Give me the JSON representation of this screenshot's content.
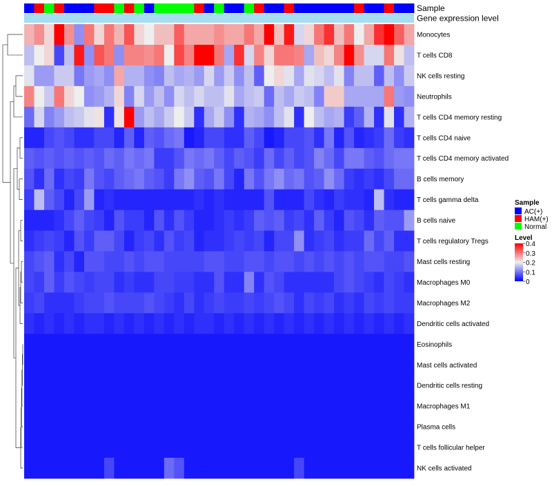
{
  "chart_data": {
    "type": "heatmap",
    "title": "",
    "annotation_tracks": [
      "Sample",
      "Gene expression level"
    ],
    "rows": [
      "Monocytes",
      "T cells CD8",
      "NK cells resting",
      "Neutrophils",
      "T cells CD4 memory resting",
      "T cells CD4 naive",
      "T cells CD4 memory activated",
      "B cells memory",
      "T cells gamma delta",
      "B cells naive",
      "T cells regulatory  Tregs",
      "Mast cells resting",
      "Macrophages M0",
      "Macrophages M2",
      "Dendritic cells activated",
      "Eosinophils",
      "Mast cells activated",
      "Dendritic cells resting",
      "Macrophages M1",
      "Plasma cells",
      "T cells follicular helper",
      "NK cells activated"
    ],
    "sample_groups": [
      "AC(+)",
      "HAM(+)",
      "Normal",
      "HAM(+)",
      "AC(+)",
      "AC(+)",
      "AC(+)",
      "HAM(+)",
      "HAM(+)",
      "Normal",
      "HAM(+)",
      "Normal",
      "AC(+)",
      "Normal",
      "Normal",
      "Normal",
      "Normal",
      "HAM(+)",
      "AC(+)",
      "Normal",
      "AC(+)",
      "AC(+)",
      "Normal",
      "HAM(+)",
      "AC(+)",
      "AC(+)",
      "HAM(+)",
      "AC(+)",
      "AC(+)",
      "AC(+)",
      "AC(+)",
      "AC(+)",
      "AC(+)",
      "HAM(+)",
      "AC(+)",
      "AC(+)",
      "HAM(+)",
      "AC(+)",
      "AC(+)"
    ],
    "values": [
      [
        0.25,
        0.28,
        0.22,
        0.4,
        0.28,
        0.12,
        0.3,
        0.22,
        0.3,
        0.25,
        0.33,
        0.22,
        0.2,
        0.24,
        0.24,
        0.32,
        0.26,
        0.26,
        0.26,
        0.28,
        0.26,
        0.26,
        0.3,
        0.26,
        0.4,
        0.24,
        0.38,
        0.18,
        0.22,
        0.3,
        0.36,
        0.24,
        0.3,
        0.2,
        0.26,
        0.36,
        0.4,
        0.32,
        0.26
      ],
      [
        0.16,
        0.2,
        0.22,
        0.06,
        0.16,
        0.38,
        0.12,
        0.33,
        0.3,
        0.12,
        0.29,
        0.29,
        0.28,
        0.3,
        0.2,
        0.34,
        0.29,
        0.4,
        0.4,
        0.3,
        0.14,
        0.36,
        0.18,
        0.29,
        0.22,
        0.3,
        0.3,
        0.29,
        0.14,
        0.24,
        0.22,
        0.29,
        0.4,
        0.28,
        0.18,
        0.18,
        0.3,
        0.21,
        0.16
      ],
      [
        0.19,
        0.13,
        0.13,
        0.17,
        0.17,
        0.1,
        0.13,
        0.14,
        0.12,
        0.26,
        0.15,
        0.15,
        0.12,
        0.11,
        0.16,
        0.14,
        0.15,
        0.13,
        0.18,
        0.13,
        0.17,
        0.12,
        0.16,
        0.08,
        0.2,
        0.22,
        0.19,
        0.14,
        0.19,
        0.18,
        0.16,
        0.19,
        0.11,
        0.16,
        0.16,
        0.08,
        0.16,
        0.12,
        0.17
      ],
      [
        0.29,
        0.2,
        0.17,
        0.3,
        0.22,
        0.2,
        0.12,
        0.13,
        0.15,
        0.22,
        0.11,
        0.18,
        0.13,
        0.16,
        0.12,
        0.18,
        0.16,
        0.18,
        0.16,
        0.16,
        0.19,
        0.14,
        0.16,
        0.17,
        0.09,
        0.16,
        0.14,
        0.17,
        0.16,
        0.11,
        0.23,
        0.23,
        0.14,
        0.14,
        0.14,
        0.14,
        0.3,
        0.13,
        0.12
      ],
      [
        0.09,
        0.18,
        0.11,
        0.13,
        0.16,
        0.17,
        0.19,
        0.21,
        0.04,
        0.21,
        0.4,
        0.13,
        0.16,
        0.14,
        0.17,
        0.2,
        0.17,
        0.04,
        0.14,
        0.17,
        0.12,
        0.04,
        0.15,
        0.14,
        0.12,
        0.16,
        0.19,
        0.04,
        0.2,
        0.16,
        0.14,
        0.15,
        0.05,
        0.08,
        0.15,
        0.04,
        0.19,
        0.04,
        0.15
      ],
      [
        0.03,
        0.03,
        0.06,
        0.07,
        0.06,
        0.04,
        0.04,
        0.06,
        0.06,
        0.03,
        0.08,
        0.03,
        0.08,
        0.07,
        0.09,
        0.1,
        0.02,
        0.03,
        0.06,
        0.06,
        0.04,
        0.04,
        0.08,
        0.06,
        0.02,
        0.03,
        0.06,
        0.06,
        0.07,
        0.04,
        0.1,
        0.03,
        0.07,
        0.03,
        0.04,
        0.05,
        0.09,
        0.05,
        0.04
      ],
      [
        0.08,
        0.07,
        0.08,
        0.07,
        0.08,
        0.07,
        0.08,
        0.07,
        0.09,
        0.08,
        0.1,
        0.09,
        0.1,
        0.05,
        0.05,
        0.07,
        0.1,
        0.09,
        0.1,
        0.08,
        0.06,
        0.08,
        0.07,
        0.05,
        0.09,
        0.06,
        0.08,
        0.06,
        0.07,
        0.11,
        0.09,
        0.06,
        0.1,
        0.1,
        0.08,
        0.07,
        0.09,
        0.1,
        0.1
      ],
      [
        0.07,
        0.04,
        0.09,
        0.04,
        0.06,
        0.05,
        0.1,
        0.07,
        0.06,
        0.08,
        0.09,
        0.1,
        0.08,
        0.07,
        0.05,
        0.1,
        0.12,
        0.08,
        0.07,
        0.1,
        0.06,
        0.03,
        0.1,
        0.07,
        0.1,
        0.12,
        0.09,
        0.1,
        0.07,
        0.08,
        0.12,
        0.09,
        0.05,
        0.04,
        0.05,
        0.04,
        0.06,
        0.09,
        0.09
      ],
      [
        0.05,
        0.16,
        0.08,
        0.06,
        0.03,
        0.06,
        0.13,
        0.03,
        0.04,
        0.03,
        0.03,
        0.03,
        0.03,
        0.03,
        0.03,
        0.03,
        0.03,
        0.04,
        0.03,
        0.04,
        0.03,
        0.03,
        0.03,
        0.03,
        0.07,
        0.03,
        0.03,
        0.03,
        0.06,
        0.04,
        0.03,
        0.05,
        0.04,
        0.04,
        0.03,
        0.16,
        0.04,
        0.03,
        0.03
      ],
      [
        0.03,
        0.03,
        0.03,
        0.04,
        0.06,
        0.08,
        0.06,
        0.05,
        0.03,
        0.07,
        0.05,
        0.05,
        0.03,
        0.07,
        0.04,
        0.07,
        0.05,
        0.03,
        0.03,
        0.04,
        0.05,
        0.04,
        0.05,
        0.08,
        0.07,
        0.08,
        0.05,
        0.06,
        0.04,
        0.08,
        0.05,
        0.03,
        0.07,
        0.06,
        0.04,
        0.08,
        0.07,
        0.07,
        0.13
      ],
      [
        0.04,
        0.05,
        0.06,
        0.05,
        0.03,
        0.07,
        0.05,
        0.08,
        0.08,
        0.06,
        0.03,
        0.05,
        0.06,
        0.04,
        0.07,
        0.05,
        0.06,
        0.03,
        0.04,
        0.04,
        0.05,
        0.06,
        0.05,
        0.06,
        0.03,
        0.06,
        0.06,
        0.12,
        0.04,
        0.05,
        0.06,
        0.04,
        0.05,
        0.05,
        0.09,
        0.06,
        0.08,
        0.04,
        0.04
      ],
      [
        0.06,
        0.07,
        0.08,
        0.04,
        0.06,
        0.03,
        0.07,
        0.07,
        0.06,
        0.06,
        0.07,
        0.06,
        0.07,
        0.07,
        0.06,
        0.06,
        0.06,
        0.06,
        0.07,
        0.07,
        0.06,
        0.06,
        0.07,
        0.07,
        0.06,
        0.07,
        0.07,
        0.06,
        0.07,
        0.06,
        0.07,
        0.06,
        0.07,
        0.06,
        0.07,
        0.07,
        0.06,
        0.06,
        0.07
      ],
      [
        0.06,
        0.05,
        0.08,
        0.05,
        0.07,
        0.06,
        0.05,
        0.06,
        0.06,
        0.04,
        0.05,
        0.04,
        0.04,
        0.06,
        0.06,
        0.05,
        0.05,
        0.04,
        0.04,
        0.07,
        0.04,
        0.04,
        0.11,
        0.04,
        0.07,
        0.06,
        0.04,
        0.04,
        0.04,
        0.04,
        0.04,
        0.06,
        0.07,
        0.06,
        0.05,
        0.04,
        0.06,
        0.05,
        0.04
      ],
      [
        0.05,
        0.06,
        0.04,
        0.04,
        0.04,
        0.05,
        0.06,
        0.06,
        0.07,
        0.06,
        0.06,
        0.06,
        0.07,
        0.06,
        0.05,
        0.04,
        0.06,
        0.04,
        0.05,
        0.06,
        0.05,
        0.05,
        0.06,
        0.05,
        0.06,
        0.07,
        0.06,
        0.04,
        0.06,
        0.05,
        0.06,
        0.04,
        0.05,
        0.04,
        0.06,
        0.05,
        0.06,
        0.05,
        0.05
      ],
      [
        0.04,
        0.03,
        0.04,
        0.03,
        0.04,
        0.03,
        0.04,
        0.04,
        0.03,
        0.04,
        0.03,
        0.04,
        0.03,
        0.04,
        0.03,
        0.04,
        0.03,
        0.04,
        0.04,
        0.03,
        0.04,
        0.03,
        0.04,
        0.03,
        0.04,
        0.03,
        0.04,
        0.03,
        0.04,
        0.03,
        0.04,
        0.03,
        0.04,
        0.03,
        0.04,
        0.03,
        0.04,
        0.03,
        0.04
      ],
      [
        0.02,
        0.02,
        0.02,
        0.02,
        0.02,
        0.02,
        0.02,
        0.02,
        0.02,
        0.02,
        0.02,
        0.02,
        0.02,
        0.02,
        0.02,
        0.02,
        0.02,
        0.02,
        0.02,
        0.02,
        0.02,
        0.02,
        0.02,
        0.02,
        0.02,
        0.02,
        0.02,
        0.02,
        0.02,
        0.02,
        0.02,
        0.02,
        0.02,
        0.02,
        0.02,
        0.02,
        0.02,
        0.02,
        0.02
      ],
      [
        0.02,
        0.02,
        0.02,
        0.02,
        0.02,
        0.02,
        0.02,
        0.02,
        0.02,
        0.02,
        0.02,
        0.02,
        0.02,
        0.02,
        0.02,
        0.02,
        0.02,
        0.02,
        0.02,
        0.02,
        0.02,
        0.02,
        0.02,
        0.02,
        0.02,
        0.02,
        0.02,
        0.02,
        0.02,
        0.02,
        0.02,
        0.02,
        0.02,
        0.02,
        0.02,
        0.02,
        0.02,
        0.02,
        0.02
      ],
      [
        0.02,
        0.02,
        0.02,
        0.02,
        0.02,
        0.02,
        0.02,
        0.02,
        0.02,
        0.02,
        0.02,
        0.02,
        0.02,
        0.02,
        0.02,
        0.02,
        0.02,
        0.02,
        0.02,
        0.02,
        0.02,
        0.02,
        0.02,
        0.02,
        0.02,
        0.02,
        0.02,
        0.02,
        0.02,
        0.02,
        0.02,
        0.02,
        0.02,
        0.02,
        0.02,
        0.02,
        0.02,
        0.02,
        0.02
      ],
      [
        0.02,
        0.02,
        0.02,
        0.02,
        0.02,
        0.02,
        0.02,
        0.02,
        0.02,
        0.02,
        0.02,
        0.02,
        0.02,
        0.02,
        0.02,
        0.02,
        0.02,
        0.02,
        0.02,
        0.02,
        0.02,
        0.02,
        0.02,
        0.02,
        0.02,
        0.02,
        0.02,
        0.02,
        0.02,
        0.02,
        0.02,
        0.02,
        0.02,
        0.02,
        0.02,
        0.02,
        0.02,
        0.02,
        0.02
      ],
      [
        0.02,
        0.02,
        0.02,
        0.02,
        0.02,
        0.02,
        0.02,
        0.02,
        0.02,
        0.02,
        0.02,
        0.02,
        0.02,
        0.02,
        0.02,
        0.02,
        0.02,
        0.02,
        0.02,
        0.02,
        0.02,
        0.02,
        0.02,
        0.02,
        0.02,
        0.02,
        0.02,
        0.02,
        0.02,
        0.02,
        0.02,
        0.02,
        0.02,
        0.02,
        0.02,
        0.02,
        0.02,
        0.02,
        0.02
      ],
      [
        0.02,
        0.02,
        0.02,
        0.02,
        0.02,
        0.02,
        0.02,
        0.02,
        0.02,
        0.02,
        0.02,
        0.02,
        0.02,
        0.02,
        0.02,
        0.02,
        0.02,
        0.02,
        0.02,
        0.02,
        0.02,
        0.02,
        0.02,
        0.02,
        0.02,
        0.02,
        0.02,
        0.02,
        0.02,
        0.02,
        0.02,
        0.02,
        0.02,
        0.02,
        0.02,
        0.02,
        0.02,
        0.02,
        0.02
      ],
      [
        0.02,
        0.02,
        0.02,
        0.02,
        0.02,
        0.02,
        0.02,
        0.02,
        0.06,
        0.02,
        0.02,
        0.02,
        0.02,
        0.02,
        0.09,
        0.07,
        0.02,
        0.02,
        0.02,
        0.02,
        0.02,
        0.02,
        0.02,
        0.02,
        0.02,
        0.02,
        0.02,
        0.06,
        0.02,
        0.02,
        0.02,
        0.02,
        0.02,
        0.02,
        0.02,
        0.02,
        0.02,
        0.02,
        0.02
      ]
    ],
    "color_scale": {
      "min": 0,
      "max": 0.4,
      "low": "#0000ff",
      "mid": "#eeeeee",
      "high": "#ff0000",
      "mid_value": 0.2
    },
    "expression_track_color": "#a7ddf0",
    "legend": {
      "sample": {
        "title": "Sample",
        "entries": [
          {
            "label": "AC(+)",
            "color": "#0000ff"
          },
          {
            "label": "HAM(+)",
            "color": "#ff0000"
          },
          {
            "label": "Normal",
            "color": "#00ff00"
          }
        ]
      },
      "level": {
        "title": "Level",
        "ticks": [
          "0.4",
          "0.3",
          "0.2",
          "0.1",
          "0"
        ]
      }
    }
  }
}
